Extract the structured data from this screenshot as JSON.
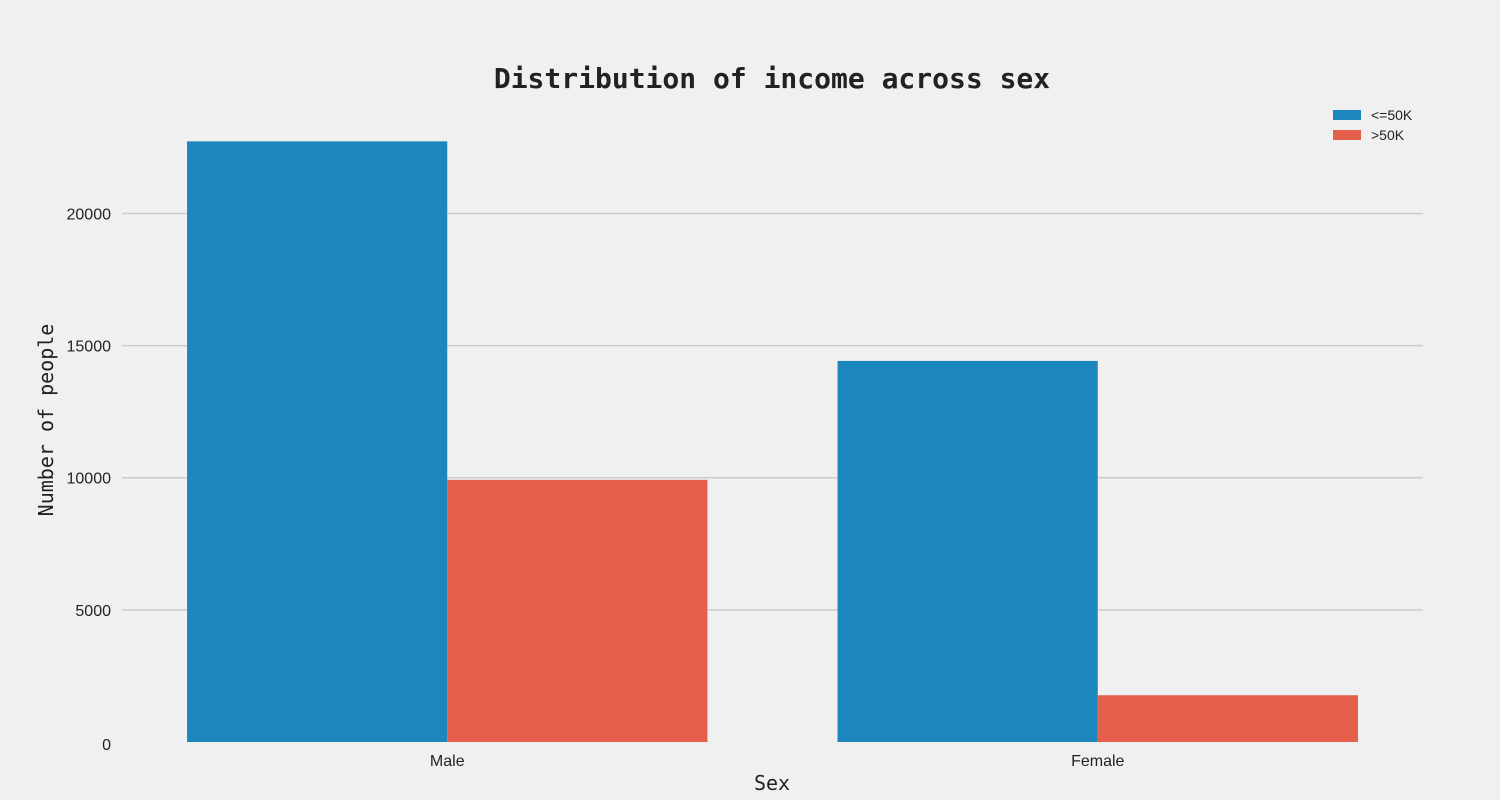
{
  "chart_data": {
    "type": "bar",
    "title": "Distribution of income across sex",
    "xlabel": "Sex",
    "ylabel": "Number of people",
    "categories": [
      "Male",
      "Female"
    ],
    "series": [
      {
        "name": "<=50K",
        "color": "#1b87bc",
        "values": [
          22730,
          14420
        ]
      },
      {
        "name": ">50K",
        "color": "#e5604a",
        "values": [
          9920,
          1770
        ]
      }
    ],
    "ylim": [
      0,
      23500
    ],
    "yticks": [
      0,
      5000,
      10000,
      15000,
      20000
    ],
    "grid": true,
    "legend_position": "top-right"
  }
}
